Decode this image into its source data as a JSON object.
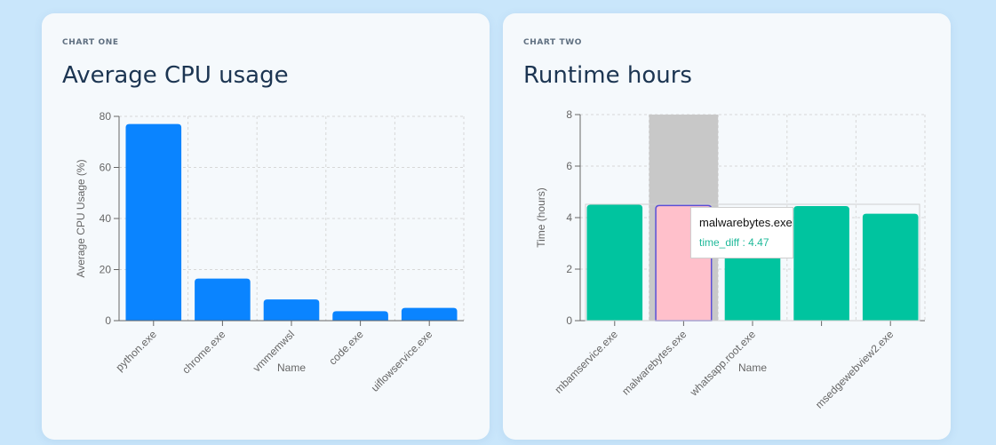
{
  "chart_data": [
    {
      "type": "bar",
      "eyebrow": "CHART ONE",
      "title": "Average CPU usage",
      "xlabel": "Name",
      "ylabel": "Average CPU Usage (%)",
      "categories": [
        "python.exe",
        "chrome.exe",
        "vmmemwsl",
        "code.exe",
        "uiflowservice.exe"
      ],
      "values": [
        77,
        16.5,
        8.3,
        3.7,
        5.0
      ],
      "ylim": [
        0,
        80
      ],
      "yticks": [
        0,
        20,
        40,
        60,
        80
      ],
      "grid": true,
      "color": "#0a84ff"
    },
    {
      "type": "bar",
      "eyebrow": "CHART TWO",
      "title": "Runtime hours",
      "xlabel": "Name",
      "ylabel": "Time (hours)",
      "categories": [
        "mbamservice.exe",
        "malwarebytes.exe",
        "whatsapp.root.exe",
        "",
        "msedgewebview2.exe"
      ],
      "values": [
        4.5,
        4.47,
        4.4,
        4.45,
        4.15
      ],
      "ylim": [
        0,
        8
      ],
      "yticks": [
        0,
        2,
        4,
        6,
        8
      ],
      "grid": true,
      "color": "#00c49f",
      "highlight_color": "#ffc0cb",
      "highlight_index": 1,
      "tooltip": {
        "label": "malwarebytes.exe",
        "series": "time_diff",
        "value": "4.47"
      }
    }
  ]
}
